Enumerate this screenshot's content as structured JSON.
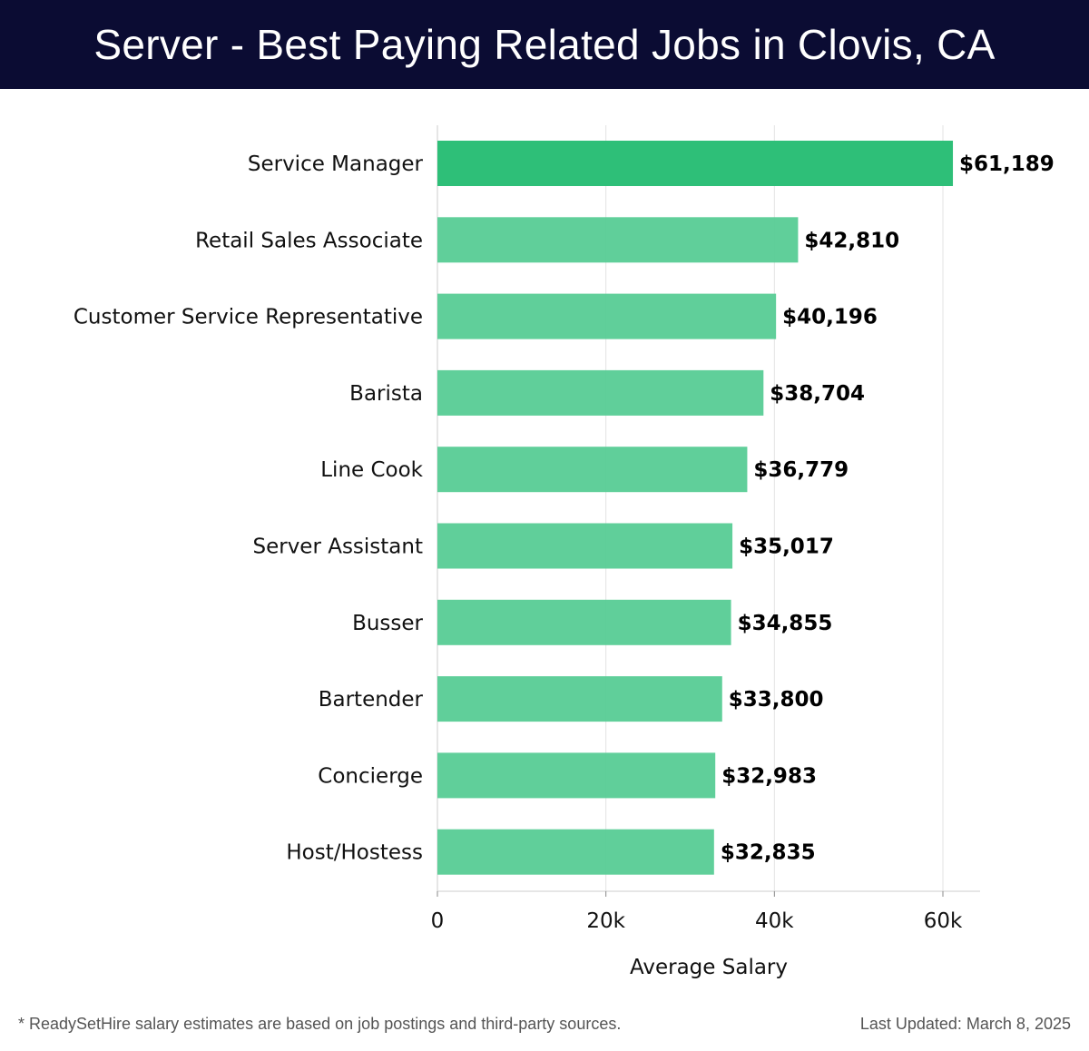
{
  "header": {
    "title": "Server - Best Paying Related Jobs in Clovis, CA"
  },
  "chart_data": {
    "type": "bar",
    "orientation": "horizontal",
    "categories": [
      "Service Manager",
      "Retail Sales Associate",
      "Customer Service Representative",
      "Barista",
      "Line Cook",
      "Server Assistant",
      "Busser",
      "Bartender",
      "Concierge",
      "Host/Hostess"
    ],
    "values": [
      61189,
      42810,
      40196,
      38704,
      36779,
      35017,
      34855,
      33800,
      32983,
      32835
    ],
    "value_labels": [
      "$61,189",
      "$42,810",
      "$40,196",
      "$38,704",
      "$36,779",
      "$35,017",
      "$34,855",
      "$33,800",
      "$32,983",
      "$32,835"
    ],
    "xlabel": "Average Salary",
    "ylabel": "",
    "xlim": [
      0,
      64000
    ],
    "x_ticks": [
      0,
      20000,
      40000,
      60000
    ],
    "x_tick_labels": [
      "0",
      "20k",
      "40k",
      "60k"
    ],
    "grid": "vertical",
    "colors": {
      "highlight_bar": "#2ebf78",
      "bar": "#57cc95",
      "grid": "#e3e3e3",
      "axis": "#cccccc"
    }
  },
  "footer": {
    "note": "* ReadySetHire salary estimates are based on job postings and third-party sources.",
    "last_updated": "Last Updated: March 8, 2025"
  }
}
